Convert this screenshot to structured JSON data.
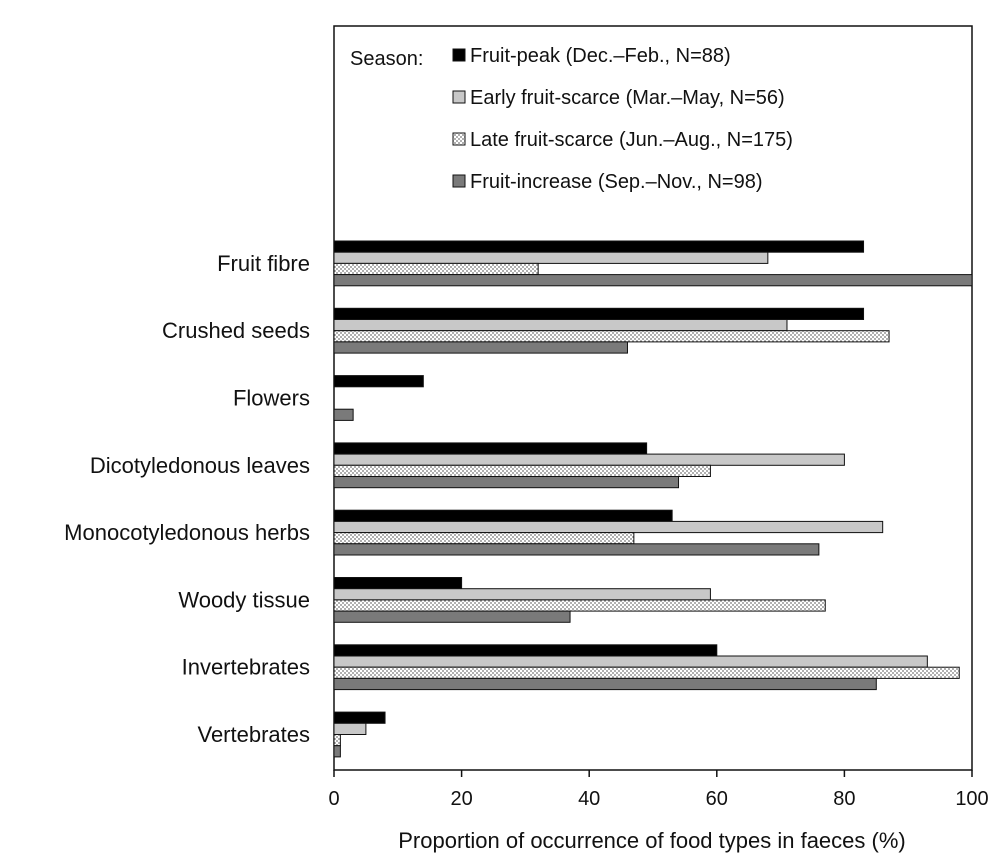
{
  "chart_data": {
    "type": "bar",
    "orientation": "horizontal",
    "title": "",
    "xlabel": "Proportion of occurrence of food types in faeces  (%)",
    "ylabel": "",
    "xlim": [
      0,
      100
    ],
    "x_ticks": [
      "0",
      "20",
      "40",
      "60",
      "80",
      "100"
    ],
    "grid": false,
    "legend_position": "top-right",
    "legend_title": "Season:",
    "categories": [
      "Fruit fibre",
      "Crushed seeds",
      "Flowers",
      "Dicotyledonous leaves",
      "Monocotyledonous herbs",
      "Woody tissue",
      "Invertebrates",
      "Vertebrates"
    ],
    "series": [
      {
        "name": "Fruit-peak (Dec.–Feb., N=88)",
        "color": "#000000",
        "pattern": "solid",
        "values": [
          83,
          83,
          14,
          49,
          53,
          20,
          60,
          8
        ]
      },
      {
        "name": "Early fruit-scarce (Mar.–May, N=56)",
        "color": "#c8c8c8",
        "pattern": "solid",
        "values": [
          68,
          71,
          0,
          80,
          86,
          59,
          93,
          5
        ]
      },
      {
        "name": "Late fruit-scarce (Jun.–Aug., N=175)",
        "color": "#ffffff",
        "pattern": "dotted",
        "values": [
          32,
          87,
          0,
          59,
          47,
          77,
          98,
          1
        ]
      },
      {
        "name": "Fruit-increase (Sep.–Nov., N=98)",
        "color": "#7a7a7a",
        "pattern": "solid",
        "values": [
          100,
          46,
          3,
          54,
          76,
          37,
          85,
          1
        ]
      }
    ]
  }
}
